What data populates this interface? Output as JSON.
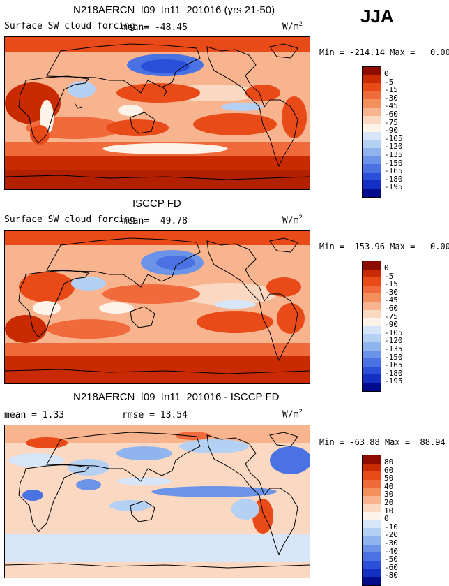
{
  "season": "JJA",
  "units_label": "W/m",
  "units_sup": "2",
  "panels": [
    {
      "title": "N218AERCN_f09_tn11_201016 (yrs 21-50)",
      "subtitle": "Surface SW cloud forcing",
      "stat": "mean=  -48.45",
      "min_label": "Min =",
      "min_value": "-214.14",
      "max_label": "Max =",
      "max_value": "0.00",
      "levels": [
        "0",
        "-5",
        "-15",
        "-30",
        "-45",
        "-60",
        "-75",
        "-90",
        "-105",
        "-120",
        "-135",
        "-150",
        "-165",
        "-180",
        "-195"
      ],
      "colors": [
        "#8c0c00",
        "#c92a00",
        "#e84a18",
        "#f06a3c",
        "#f3905c",
        "#f7b48e",
        "#fad8c2",
        "#fdf3e9",
        "#d6e6f8",
        "#b4d0f3",
        "#8fb4ee",
        "#6b93e8",
        "#4a72e2",
        "#2a4fd8",
        "#1430c4",
        "#000c8c"
      ]
    },
    {
      "title": "ISCCP FD",
      "subtitle": "Surface SW cloud forcing",
      "stat": "mean=  -49.78",
      "min_label": "Min =",
      "min_value": "-153.96",
      "max_label": "Max =",
      "max_value": "0.00",
      "levels": [
        "0",
        "-5",
        "-15",
        "-30",
        "-45",
        "-60",
        "-75",
        "-90",
        "-105",
        "-120",
        "-135",
        "-150",
        "-165",
        "-180",
        "-195"
      ],
      "colors": [
        "#8c0c00",
        "#c92a00",
        "#e84a18",
        "#f06a3c",
        "#f3905c",
        "#f7b48e",
        "#fad8c2",
        "#fdf3e9",
        "#d6e6f8",
        "#b4d0f3",
        "#8fb4ee",
        "#6b93e8",
        "#4a72e2",
        "#2a4fd8",
        "#1430c4",
        "#000c8c"
      ]
    },
    {
      "title": "N218AERCN_f09_tn11_201016 - ISCCP FD",
      "mean_label": "mean =",
      "mean_value": "1.33",
      "rmse_label": "rmse =",
      "rmse_value": "13.54",
      "min_label": "Min =",
      "min_value": "-63.88",
      "max_label": "Max =",
      "max_value": "88.94",
      "levels": [
        "80",
        "60",
        "50",
        "40",
        "30",
        "20",
        "10",
        "0",
        "-10",
        "-20",
        "-30",
        "-40",
        "-50",
        "-60",
        "-80"
      ],
      "colors": [
        "#8c0c00",
        "#c92a00",
        "#e84a18",
        "#f06a3c",
        "#f3905c",
        "#f7b48e",
        "#fad8c2",
        "#fdf3e9",
        "#d6e6f8",
        "#b4d0f3",
        "#8fb4ee",
        "#6b93e8",
        "#4a72e2",
        "#2a4fd8",
        "#1430c4",
        "#000c8c"
      ]
    }
  ]
}
